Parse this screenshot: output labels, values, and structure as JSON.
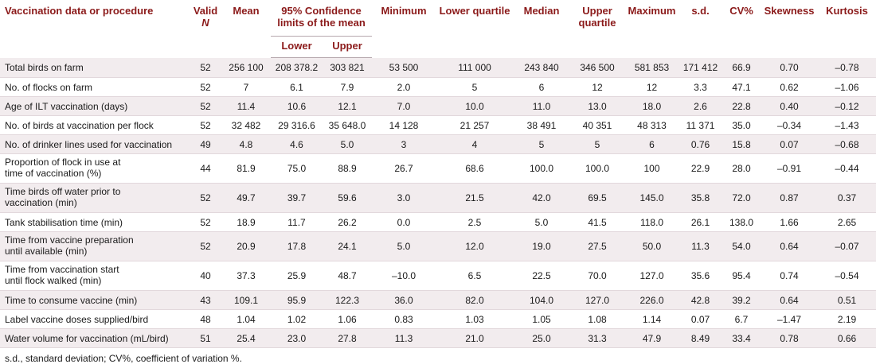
{
  "table": {
    "headers": {
      "procedure": "Vaccination data or procedure",
      "valid_n_prefix": "Valid ",
      "valid_n_italic": "N",
      "mean": "Mean",
      "ci_group": "95% Confidence limits of the mean",
      "ci_lower": "Lower",
      "ci_upper": "Upper",
      "minimum": "Minimum",
      "lower_quartile": "Lower quartile",
      "median": "Median",
      "upper_quartile": "Upper quartile",
      "maximum": "Maximum",
      "sd": "s.d.",
      "cv": "CV%",
      "skewness": "Skewness",
      "kurtosis": "Kurtosis"
    },
    "rows": [
      {
        "label": "Total birds on farm",
        "valid_n": "52",
        "mean": "256 100",
        "lower": "208 378.2",
        "upper": "303 821",
        "minimum": "53 500",
        "lower_quartile": "111 000",
        "median": "243 840",
        "upper_quartile": "346 500",
        "maximum": "581 853",
        "sd": "171 412",
        "cv": "66.9",
        "skewness": "0.70",
        "kurtosis": "–0.78"
      },
      {
        "label": "No. of flocks on farm",
        "valid_n": "52",
        "mean": "7",
        "lower": "6.1",
        "upper": "7.9",
        "minimum": "2.0",
        "lower_quartile": "5",
        "median": "6",
        "upper_quartile": "12",
        "maximum": "12",
        "sd": "3.3",
        "cv": "47.1",
        "skewness": "0.62",
        "kurtosis": "–1.06"
      },
      {
        "label": "Age of ILT vaccination (days)",
        "valid_n": "52",
        "mean": "11.4",
        "lower": "10.6",
        "upper": "12.1",
        "minimum": "7.0",
        "lower_quartile": "10.0",
        "median": "11.0",
        "upper_quartile": "13.0",
        "maximum": "18.0",
        "sd": "2.6",
        "cv": "22.8",
        "skewness": "0.40",
        "kurtosis": "–0.12"
      },
      {
        "label": "No. of birds at vaccination per flock",
        "valid_n": "52",
        "mean": "32 482",
        "lower": "29 316.6",
        "upper": "35 648.0",
        "minimum": "14 128",
        "lower_quartile": "21 257",
        "median": "38 491",
        "upper_quartile": "40 351",
        "maximum": "48 313",
        "sd": "11 371",
        "cv": "35.0",
        "skewness": "–0.34",
        "kurtosis": "–1.43"
      },
      {
        "label": "No. of drinker lines used for vaccination",
        "valid_n": "49",
        "mean": "4.8",
        "lower": "4.6",
        "upper": "5.0",
        "minimum": "3",
        "lower_quartile": "4",
        "median": "5",
        "upper_quartile": "5",
        "maximum": "6",
        "sd": "0.76",
        "cv": "15.8",
        "skewness": "0.07",
        "kurtosis": "–0.68"
      },
      {
        "label": "Proportion of flock in use at time of vaccination (%)",
        "valid_n": "44",
        "mean": "81.9",
        "lower": "75.0",
        "upper": "88.9",
        "minimum": "26.7",
        "lower_quartile": "68.6",
        "median": "100.0",
        "upper_quartile": "100.0",
        "maximum": "100",
        "sd": "22.9",
        "cv": "28.0",
        "skewness": "–0.91",
        "kurtosis": "–0.44"
      },
      {
        "label": "Time birds off water prior to vaccination (min)",
        "valid_n": "52",
        "mean": "49.7",
        "lower": "39.7",
        "upper": "59.6",
        "minimum": "3.0",
        "lower_quartile": "21.5",
        "median": "42.0",
        "upper_quartile": "69.5",
        "maximum": "145.0",
        "sd": "35.8",
        "cv": "72.0",
        "skewness": "0.87",
        "kurtosis": "0.37"
      },
      {
        "label": "Tank stabilisation time (min)",
        "valid_n": "52",
        "mean": "18.9",
        "lower": "11.7",
        "upper": "26.2",
        "minimum": "0.0",
        "lower_quartile": "2.5",
        "median": "5.0",
        "upper_quartile": "41.5",
        "maximum": "118.0",
        "sd": "26.1",
        "cv": "138.0",
        "skewness": "1.66",
        "kurtosis": "2.65"
      },
      {
        "label": "Time from vaccine preparation until available (min)",
        "valid_n": "52",
        "mean": "20.9",
        "lower": "17.8",
        "upper": "24.1",
        "minimum": "5.0",
        "lower_quartile": "12.0",
        "median": "19.0",
        "upper_quartile": "27.5",
        "maximum": "50.0",
        "sd": "11.3",
        "cv": "54.0",
        "skewness": "0.64",
        "kurtosis": "–0.07"
      },
      {
        "label": "Time from vaccination start until flock walked (min)",
        "valid_n": "40",
        "mean": "37.3",
        "lower": "25.9",
        "upper": "48.7",
        "minimum": "–10.0",
        "lower_quartile": "6.5",
        "median": "22.5",
        "upper_quartile": "70.0",
        "maximum": "127.0",
        "sd": "35.6",
        "cv": "95.4",
        "skewness": "0.74",
        "kurtosis": "–0.54"
      },
      {
        "label": "Time to consume vaccine (min)",
        "valid_n": "43",
        "mean": "109.1",
        "lower": "95.9",
        "upper": "122.3",
        "minimum": "36.0",
        "lower_quartile": "82.0",
        "median": "104.0",
        "upper_quartile": "127.0",
        "maximum": "226.0",
        "sd": "42.8",
        "cv": "39.2",
        "skewness": "0.64",
        "kurtosis": "0.51"
      },
      {
        "label": "Label vaccine doses supplied/bird",
        "valid_n": "48",
        "mean": "1.04",
        "lower": "1.02",
        "upper": "1.06",
        "minimum": "0.83",
        "lower_quartile": "1.03",
        "median": "1.05",
        "upper_quartile": "1.08",
        "maximum": "1.14",
        "sd": "0.07",
        "cv": "6.7",
        "skewness": "–1.47",
        "kurtosis": "2.19"
      },
      {
        "label": "Water volume for vaccination (mL/bird)",
        "valid_n": "51",
        "mean": "25.4",
        "lower": "23.0",
        "upper": "27.8",
        "minimum": "11.3",
        "lower_quartile": "21.0",
        "median": "25.0",
        "upper_quartile": "31.3",
        "maximum": "47.9",
        "sd": "8.49",
        "cv": "33.4",
        "skewness": "0.78",
        "kurtosis": "0.66"
      }
    ],
    "row_label_widths": [
      0,
      0,
      0,
      0,
      0,
      0,
      0,
      0,
      0,
      0,
      0,
      0,
      0
    ]
  },
  "footnote": "s.d., standard deviation; CV%, coefficient of variation %."
}
